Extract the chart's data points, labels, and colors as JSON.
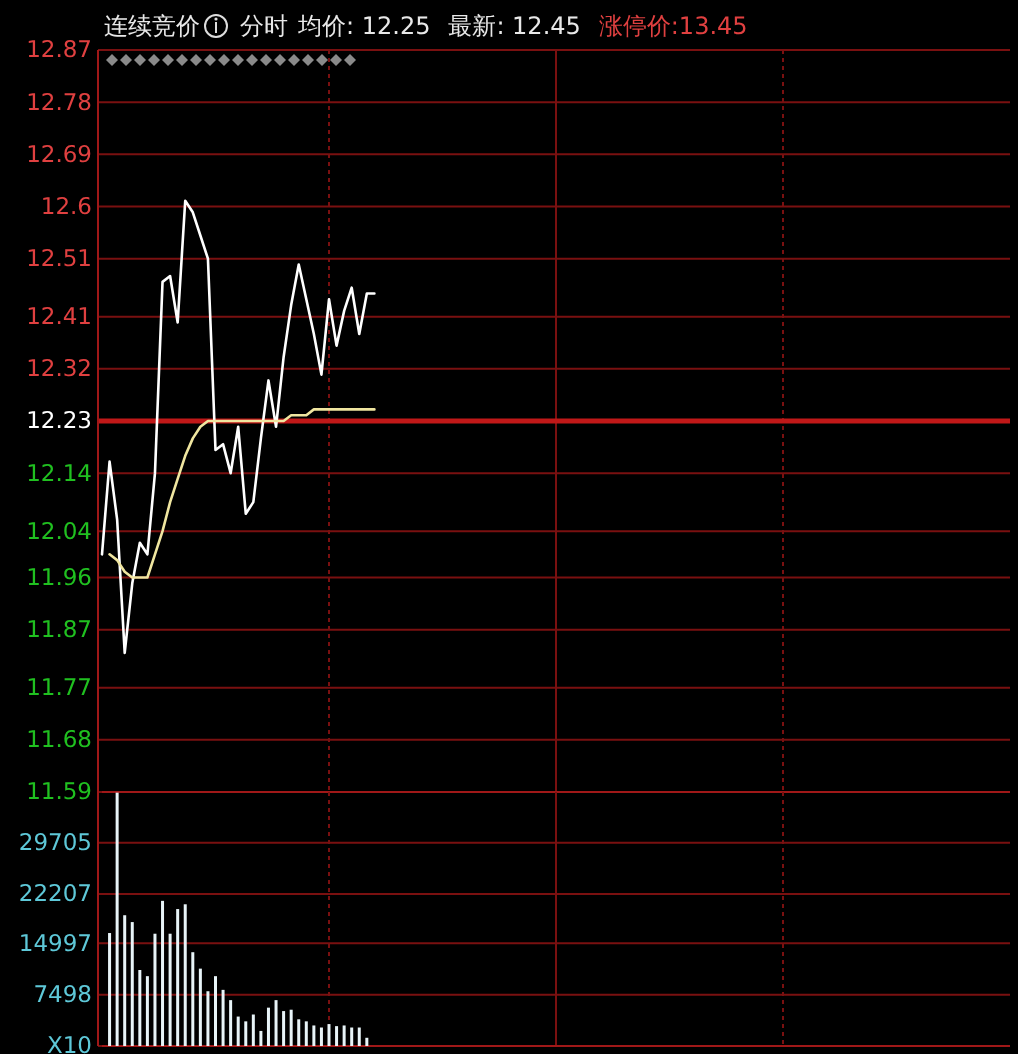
{
  "chart_data": [
    {
      "type": "line",
      "title": "连续竞价",
      "annotations": [
        "分时",
        "均价: 12.25",
        "最新: 12.45",
        "涨停价:13.45"
      ],
      "categories": [
        null,
        null,
        null,
        null,
        null,
        null,
        null,
        null,
        null,
        null,
        null,
        null,
        null,
        null,
        null,
        null,
        null,
        null,
        null,
        null,
        null,
        null,
        null,
        null,
        null,
        null,
        null,
        null,
        null,
        null,
        null,
        null,
        null,
        null,
        null,
        null,
        null,
        null,
        null,
        null,
        null,
        null,
        null,
        null,
        null,
        null,
        null,
        null,
        null,
        null,
        null,
        null,
        null,
        null,
        null,
        null,
        null,
        null,
        null,
        null,
        null,
        null,
        null,
        null,
        null,
        null,
        null,
        null,
        null,
        null,
        null,
        null,
        null,
        null,
        null,
        null,
        null,
        null,
        null,
        null,
        null,
        null,
        null,
        null,
        null,
        null,
        null,
        null,
        null,
        null,
        null,
        null,
        null,
        null,
        null,
        null,
        null,
        null,
        null,
        null,
        null,
        null,
        null,
        null,
        null,
        null,
        null,
        null,
        null,
        null,
        null,
        null,
        null,
        null,
        null,
        null,
        null,
        null,
        null,
        null,
        null
      ],
      "ylim": [
        11.59,
        12.87
      ],
      "yticks": [
        11.59,
        11.68,
        11.77,
        11.87,
        11.96,
        12.04,
        12.14,
        12.23,
        12.32,
        12.41,
        12.51,
        12.6,
        12.69,
        12.78,
        12.87
      ],
      "tick_labels": "y",
      "grid": true,
      "ref_lines": [
        {
          "axis": "y",
          "value": 12.23,
          "color": "#c01818"
        }
      ],
      "series": [
        {
          "color": "#ffffff",
          "values": [
            12.0,
            12.16,
            12.06,
            11.83,
            11.95,
            12.02,
            12.0,
            12.14,
            12.47,
            12.48,
            12.4,
            12.61,
            12.59,
            12.55,
            12.51,
            12.18,
            12.19,
            12.14,
            12.22,
            12.07,
            12.09,
            12.2,
            12.3,
            12.22,
            12.34,
            12.43,
            12.5,
            12.44,
            12.38,
            12.31,
            12.44,
            12.36,
            12.42,
            12.46,
            12.38,
            12.45,
            12.45,
            null,
            null,
            null,
            null,
            null,
            null,
            null,
            null,
            null,
            null,
            null,
            null,
            null,
            null,
            null,
            null,
            null,
            null,
            null,
            null,
            null,
            null,
            null,
            null,
            null,
            null,
            null,
            null,
            null,
            null,
            null,
            null,
            null,
            null,
            null,
            null,
            null,
            null,
            null,
            null,
            null,
            null,
            null,
            null,
            null,
            null,
            null,
            null,
            null,
            null,
            null,
            null,
            null,
            null,
            null,
            null,
            null,
            null,
            null,
            null,
            null,
            null,
            null,
            null,
            null,
            null,
            null,
            null,
            null,
            null,
            null,
            null,
            null,
            null,
            null,
            null,
            null,
            null,
            null,
            null,
            null,
            null,
            null,
            null
          ]
        },
        {
          "color": "#f0e6a0",
          "values": [
            null,
            12.0,
            11.99,
            11.97,
            11.96,
            11.96,
            11.96,
            12.0,
            12.04,
            12.09,
            12.13,
            12.17,
            12.2,
            12.22,
            12.23,
            12.23,
            12.23,
            12.23,
            12.23,
            12.23,
            12.23,
            12.23,
            12.23,
            12.23,
            12.23,
            12.24,
            12.24,
            12.24,
            12.25,
            12.25,
            12.25,
            12.25,
            12.25,
            12.25,
            12.25,
            12.25,
            12.25,
            null,
            null,
            null,
            null,
            null,
            null,
            null,
            null,
            null,
            null,
            null,
            null,
            null,
            null,
            null,
            null,
            null,
            null,
            null,
            null,
            null,
            null,
            null,
            null,
            null,
            null,
            null,
            null,
            null,
            null,
            null,
            null,
            null,
            null,
            null,
            null,
            null,
            null,
            null,
            null,
            null,
            null,
            null,
            null,
            null,
            null,
            null,
            null,
            null,
            null,
            null,
            null,
            null,
            null,
            null,
            null,
            null,
            null,
            null,
            null,
            null,
            null,
            null,
            null,
            null,
            null,
            null,
            null,
            null,
            null,
            null,
            null,
            null,
            null,
            null,
            null,
            null,
            null,
            null,
            null,
            null,
            null,
            null,
            null
          ]
        }
      ]
    },
    {
      "type": "bar",
      "categories": [
        null,
        null,
        null,
        null,
        null,
        null,
        null,
        null,
        null,
        null,
        null,
        null,
        null,
        null,
        null,
        null,
        null,
        null,
        null,
        null,
        null,
        null,
        null,
        null,
        null,
        null,
        null,
        null,
        null,
        null,
        null,
        null,
        null,
        null,
        null,
        null,
        null,
        null,
        null,
        null,
        null,
        null,
        null,
        null,
        null,
        null,
        null,
        null,
        null,
        null,
        null,
        null,
        null,
        null,
        null,
        null,
        null,
        null,
        null,
        null,
        null,
        null,
        null,
        null,
        null,
        null,
        null,
        null,
        null,
        null,
        null,
        null,
        null,
        null,
        null,
        null,
        null,
        null,
        null,
        null,
        null,
        null,
        null,
        null,
        null,
        null,
        null,
        null,
        null,
        null,
        null,
        null,
        null,
        null,
        null,
        null,
        null,
        null,
        null,
        null,
        null,
        null,
        null,
        null,
        null,
        null,
        null,
        null,
        null,
        null,
        null,
        null,
        null,
        null,
        null,
        null,
        null,
        null,
        null,
        null,
        null
      ],
      "ylim": [
        0,
        37100
      ],
      "yticks": [
        {
          "value": 0,
          "label": "X10"
        },
        7498,
        14997,
        22207,
        29705
      ],
      "tick_labels": "y",
      "grid": true,
      "color": "#e8f4f8",
      "values": [
        null,
        16500,
        37000,
        19100,
        18100,
        11100,
        10200,
        16400,
        21200,
        16400,
        20000,
        20700,
        13700,
        11300,
        8000,
        10200,
        8200,
        6700,
        4300,
        3600,
        4600,
        2200,
        5600,
        6700,
        5100,
        5300,
        3900,
        3600,
        3000,
        2700,
        3200,
        2900,
        3000,
        2700,
        2700,
        1200,
        null,
        null,
        null,
        null,
        null,
        null,
        null,
        null,
        null,
        null,
        null,
        null,
        null,
        null,
        null,
        null,
        null,
        null,
        null,
        null,
        null,
        null,
        null,
        null,
        null,
        null,
        null,
        null,
        null,
        null,
        null,
        null,
        null,
        null,
        null,
        null,
        null,
        null,
        null,
        null,
        null,
        null,
        null,
        null,
        null,
        null,
        null,
        null,
        null,
        null,
        null,
        null,
        null,
        null,
        null,
        null,
        null,
        null,
        null,
        null,
        null,
        null,
        null,
        null,
        null,
        null,
        null,
        null,
        null,
        null,
        null,
        null,
        null,
        null,
        null,
        null,
        null,
        null,
        null,
        null,
        null,
        null,
        null,
        null,
        null
      ]
    }
  ]
}
